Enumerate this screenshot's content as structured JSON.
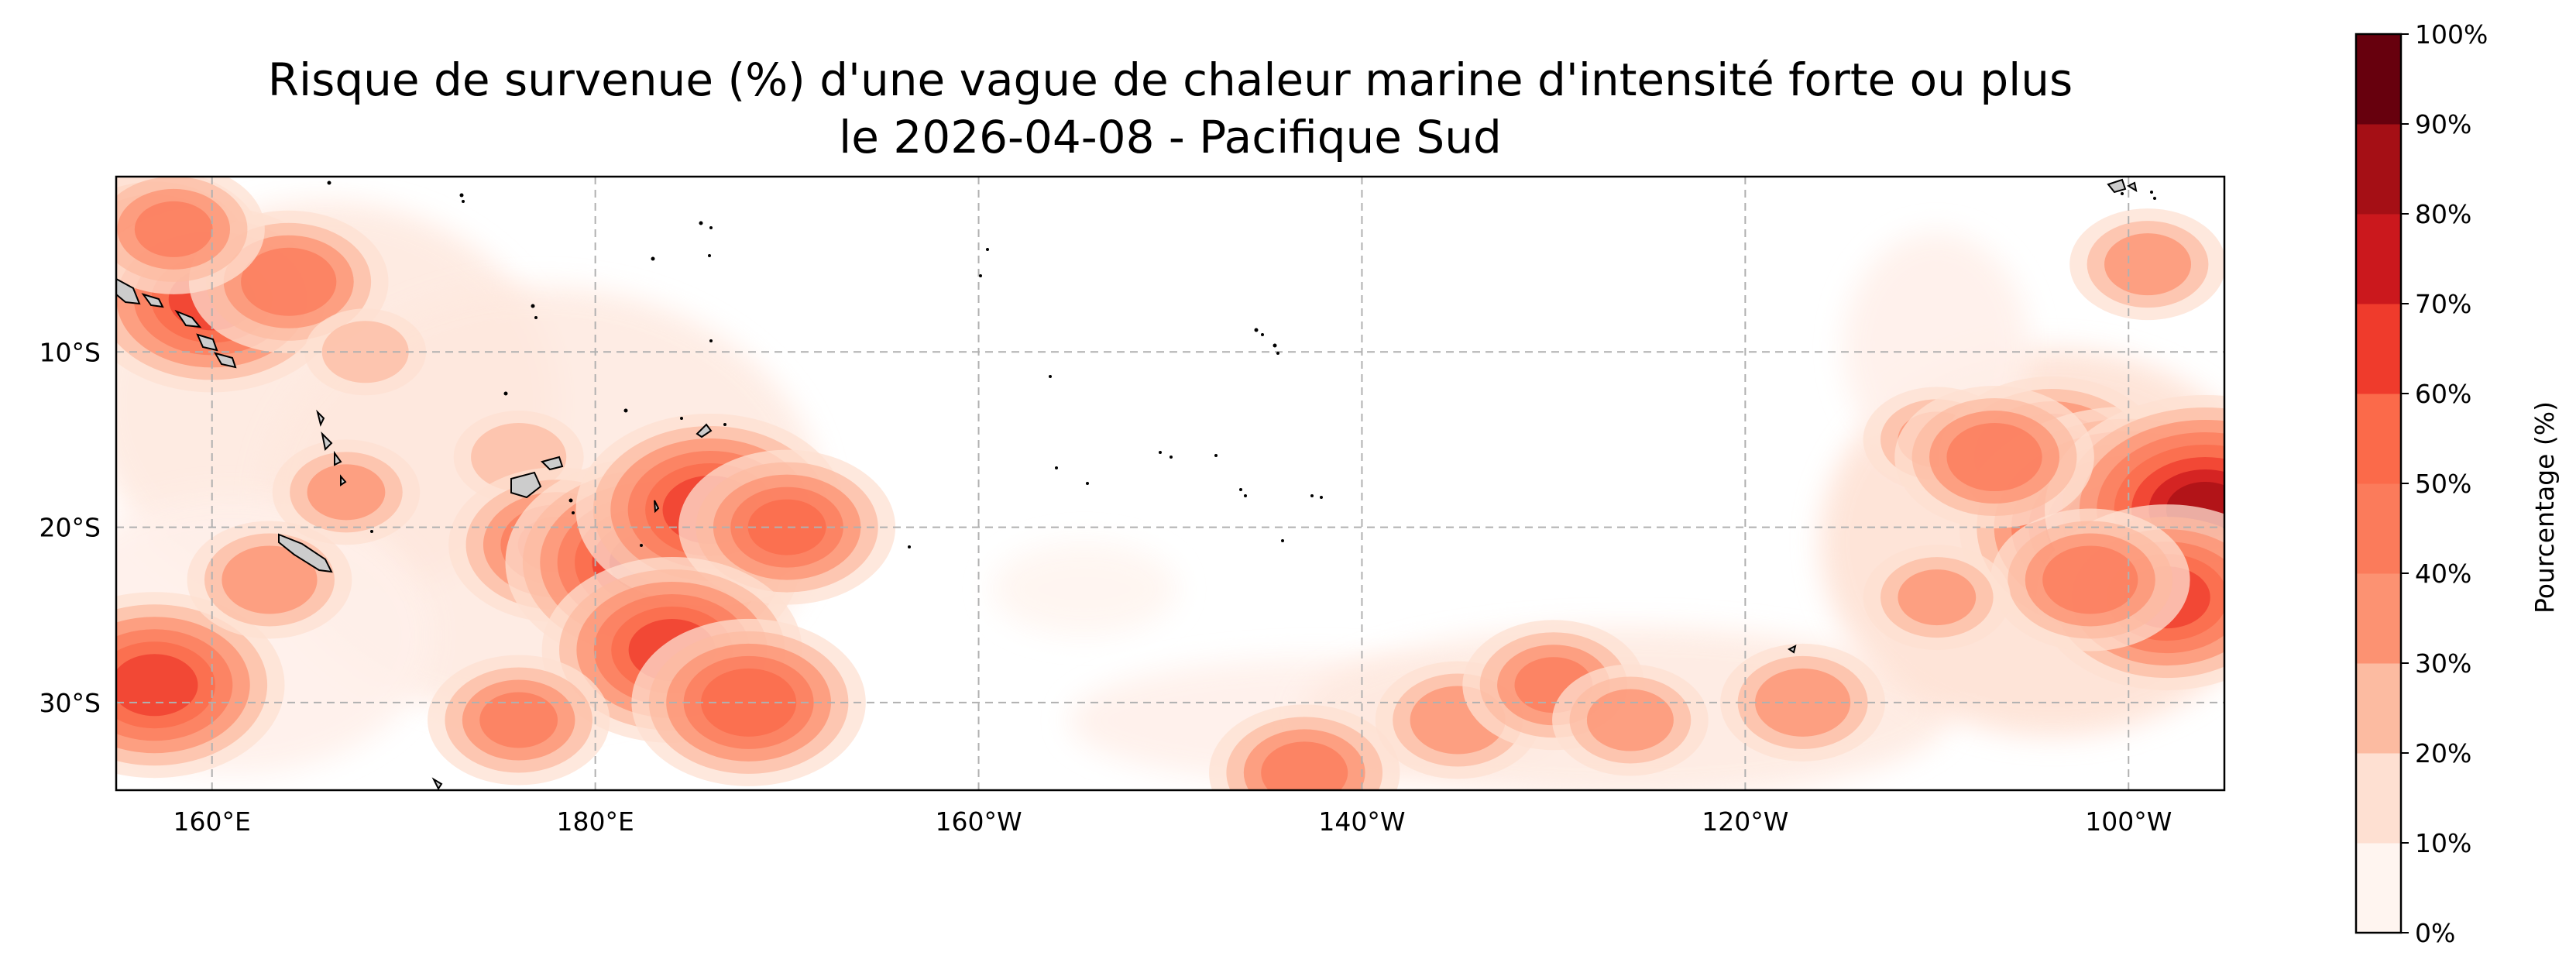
{
  "title": {
    "line1": "Risque de survenue (%) d'une vague de chaleur marine d'intensité forte ou plus",
    "line2": "le 2026-04-08 - Pacifique Sud"
  },
  "map": {
    "region": "Pacifique Sud",
    "date": "2026-04-08",
    "lon_range": [
      155,
      265
    ],
    "lat_range": [
      -35,
      0
    ],
    "gridlines": "dashed",
    "x_tick_labels": [
      "160°E",
      "180°E",
      "160°W",
      "140°W",
      "120°W",
      "100°W"
    ],
    "y_tick_labels": [
      "10°S",
      "20°S",
      "30°S"
    ]
  },
  "colorbar": {
    "label": "Pourcentage (%)",
    "ticks": [
      "0%",
      "10%",
      "20%",
      "30%",
      "40%",
      "50%",
      "60%",
      "70%",
      "80%",
      "90%",
      "100%"
    ],
    "colors": [
      "#fff5f0",
      "#fee0d2",
      "#fcbba1",
      "#fc9272",
      "#fb7b5b",
      "#fb6a4a",
      "#ef3b2c",
      "#cb181d",
      "#a50f15",
      "#67000d"
    ]
  },
  "heat_patches": [
    {
      "lon": 157,
      "lat": -4,
      "level": 5
    },
    {
      "lon": 160,
      "lat": -7,
      "level": 6
    },
    {
      "lon": 164,
      "lat": -6,
      "level": 4
    },
    {
      "lon": 158,
      "lat": -3,
      "level": 4
    },
    {
      "lon": 168,
      "lat": -10,
      "level": 2
    },
    {
      "lon": 176,
      "lat": -16,
      "level": 2
    },
    {
      "lon": 178,
      "lat": -21,
      "level": 5
    },
    {
      "lon": 183,
      "lat": -22,
      "level": 7
    },
    {
      "lon": 186,
      "lat": -19,
      "level": 6
    },
    {
      "lon": 190,
      "lat": -20,
      "level": 5
    },
    {
      "lon": 184,
      "lat": -27,
      "level": 6
    },
    {
      "lon": 188,
      "lat": -30,
      "level": 5
    },
    {
      "lon": 176,
      "lat": -31,
      "level": 4
    },
    {
      "lon": 157,
      "lat": -29,
      "level": 6
    },
    {
      "lon": 163,
      "lat": -23,
      "level": 3
    },
    {
      "lon": 167,
      "lat": -18,
      "level": 3
    },
    {
      "lon": 217,
      "lat": -34,
      "level": 4
    },
    {
      "lon": 225,
      "lat": -31,
      "level": 3
    },
    {
      "lon": 230,
      "lat": -29,
      "level": 4
    },
    {
      "lon": 234,
      "lat": -31,
      "level": 3
    },
    {
      "lon": 243,
      "lat": -30,
      "level": 3
    },
    {
      "lon": 250,
      "lat": -15,
      "level": 3
    },
    {
      "lon": 256,
      "lat": -16,
      "level": 5
    },
    {
      "lon": 260,
      "lat": -20,
      "level": 8
    },
    {
      "lon": 264,
      "lat": -19,
      "level": 8
    },
    {
      "lon": 262,
      "lat": -24,
      "level": 6
    },
    {
      "lon": 258,
      "lat": -23,
      "level": 4
    },
    {
      "lon": 250,
      "lat": -24,
      "level": 3
    },
    {
      "lon": 261,
      "lat": -5,
      "level": 3
    },
    {
      "lon": 253,
      "lat": -16,
      "level": 4
    }
  ]
}
